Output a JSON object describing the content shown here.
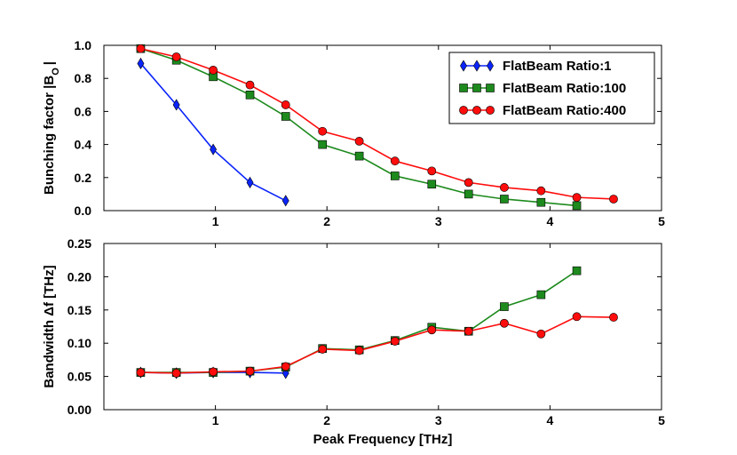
{
  "chart_data": [
    {
      "id": "top",
      "type": "line",
      "ylabel": "Bunching factor |B",
      "ylabel_sub": "O",
      "ylabel_tail": "|",
      "xlabel": "",
      "xlim": [
        0.0,
        5.0
      ],
      "ylim": [
        0.0,
        1.0
      ],
      "xticks": [
        "1",
        "2",
        "3",
        "4",
        "5"
      ],
      "yticks": [
        "0.0",
        "0.2",
        "0.4",
        "0.6",
        "0.8",
        "1.0"
      ],
      "legend_position": "top-right",
      "series": [
        {
          "name": "FlatBeam Ratio:1",
          "color": "#0b24fb",
          "marker": "diamond",
          "x": [
            0.33,
            0.65,
            0.98,
            1.31,
            1.63
          ],
          "y": [
            0.89,
            0.64,
            0.37,
            0.17,
            0.06
          ]
        },
        {
          "name": "FlatBeam Ratio:100",
          "color": "#1d8a1d",
          "marker": "square",
          "x": [
            0.33,
            0.65,
            0.98,
            1.31,
            1.63,
            1.96,
            2.29,
            2.61,
            2.94,
            3.27,
            3.59,
            3.92,
            4.24
          ],
          "y": [
            0.98,
            0.91,
            0.81,
            0.7,
            0.57,
            0.4,
            0.33,
            0.21,
            0.16,
            0.1,
            0.07,
            0.05,
            0.03
          ]
        },
        {
          "name": "FlatBeam Ratio:400",
          "color": "#ff0d0d",
          "marker": "circle",
          "x": [
            0.33,
            0.65,
            0.98,
            1.31,
            1.63,
            1.96,
            2.29,
            2.61,
            2.94,
            3.27,
            3.59,
            3.92,
            4.24,
            4.57
          ],
          "y": [
            0.98,
            0.93,
            0.85,
            0.76,
            0.64,
            0.48,
            0.42,
            0.3,
            0.24,
            0.17,
            0.14,
            0.12,
            0.08,
            0.07
          ]
        }
      ]
    },
    {
      "id": "bottom",
      "type": "line",
      "ylabel": "Bandwidth Δf [THz]",
      "xlabel": "Peak Frequency [THz]",
      "xlim": [
        0.0,
        5.0
      ],
      "ylim": [
        0.0,
        0.25
      ],
      "xticks": [
        "1",
        "2",
        "3",
        "4",
        "5"
      ],
      "yticks": [
        "0.00",
        "0.05",
        "0.10",
        "0.15",
        "0.20",
        "0.25"
      ],
      "series": [
        {
          "name": "FlatBeam Ratio:1",
          "color": "#0b24fb",
          "marker": "diamond",
          "x": [
            0.33,
            0.65,
            0.98,
            1.31,
            1.63
          ],
          "y": [
            0.056,
            0.055,
            0.056,
            0.056,
            0.055
          ]
        },
        {
          "name": "FlatBeam Ratio:100",
          "color": "#1d8a1d",
          "marker": "square",
          "x": [
            0.33,
            0.65,
            0.98,
            1.31,
            1.63,
            1.96,
            2.29,
            2.61,
            2.94,
            3.27,
            3.59,
            3.92,
            4.24
          ],
          "y": [
            0.056,
            0.056,
            0.056,
            0.058,
            0.064,
            0.092,
            0.09,
            0.104,
            0.124,
            0.118,
            0.155,
            0.173,
            0.209
          ]
        },
        {
          "name": "FlatBeam Ratio:400",
          "color": "#ff0d0d",
          "marker": "circle",
          "x": [
            0.33,
            0.65,
            0.98,
            1.31,
            1.63,
            1.96,
            2.29,
            2.61,
            2.94,
            3.27,
            3.59,
            3.92,
            4.24,
            4.57
          ],
          "y": [
            0.056,
            0.055,
            0.057,
            0.058,
            0.065,
            0.091,
            0.089,
            0.103,
            0.12,
            0.118,
            0.13,
            0.114,
            0.14,
            0.139
          ]
        }
      ]
    }
  ]
}
